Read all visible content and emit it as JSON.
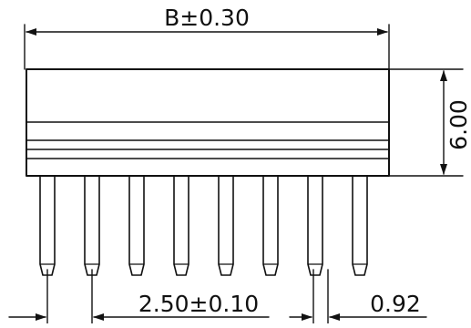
{
  "dimensions": {
    "overall_length": "B±0.30",
    "height": "6.00",
    "pitch": "2.50±0.10",
    "pin_width": "0.92"
  },
  "component": {
    "pin_count": 8
  },
  "colors": {
    "line": "#111111",
    "background": "#ffffff"
  }
}
